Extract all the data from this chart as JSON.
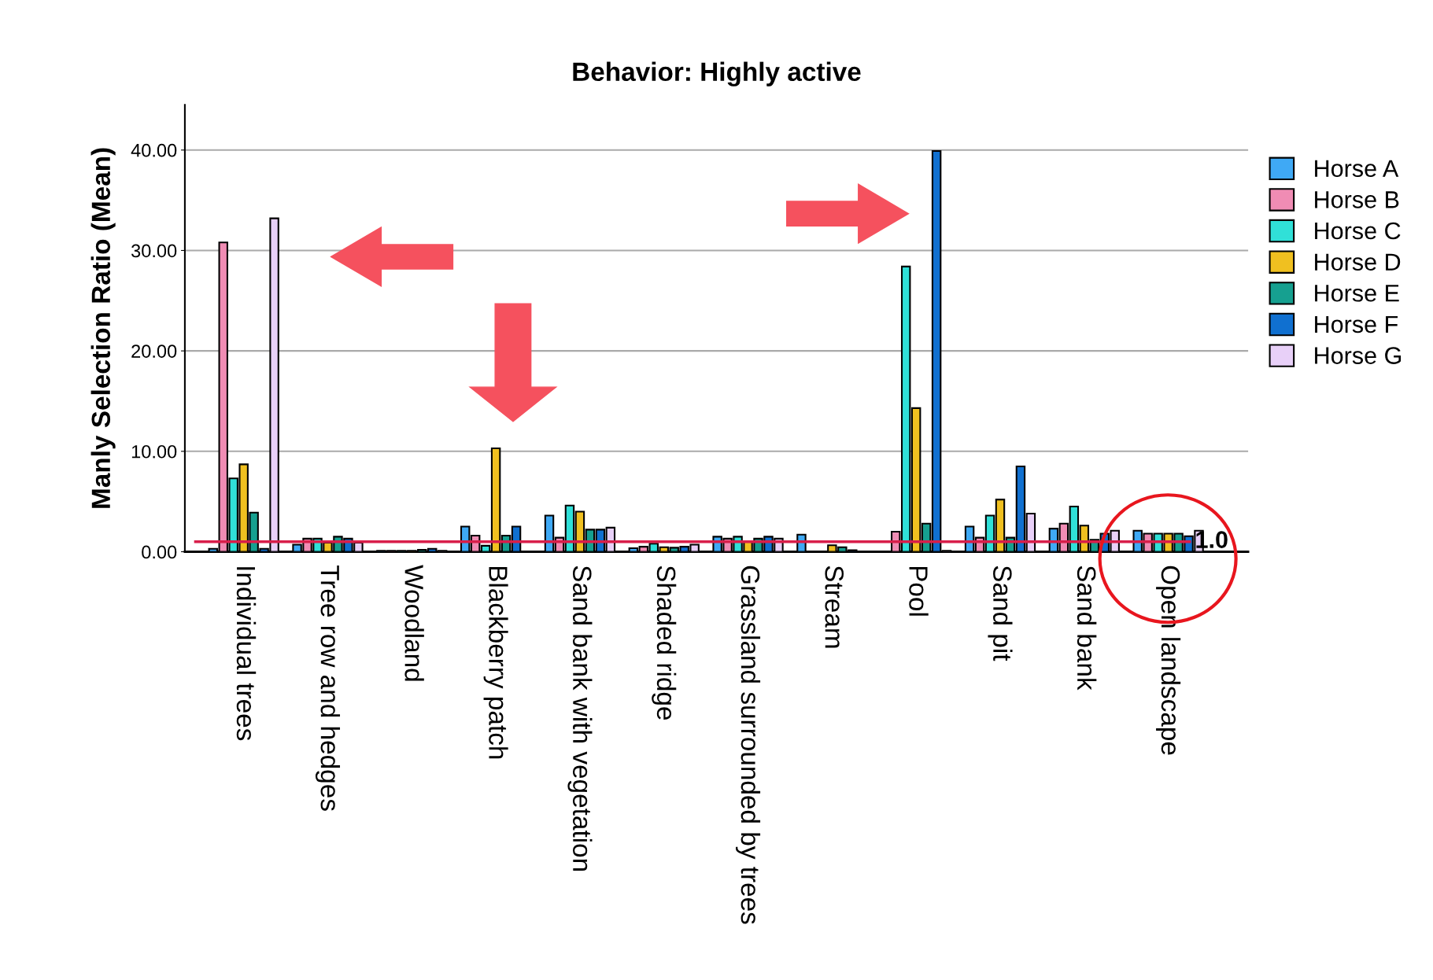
{
  "chart_data": {
    "type": "bar",
    "title": "Behavior: Highly active",
    "ylabel": "Manly Selection Ratio (Mean)",
    "categories": [
      "Individual trees",
      "Tree row and hedges",
      "Woodland",
      "Blackberry patch",
      "Sand bank with vegetation",
      "Shaded ridge",
      "Grassland surrounded by trees",
      "Stream",
      "Pool",
      "Sand pit",
      "Sand bank",
      "Open landscape"
    ],
    "series": [
      {
        "name": "Horse A",
        "color": "#3fa9f5",
        "values": [
          0.3,
          0.7,
          0.1,
          2.5,
          3.6,
          0.35,
          1.5,
          1.7,
          null,
          2.5,
          2.3,
          2.1
        ]
      },
      {
        "name": "Horse B",
        "color": "#f08cb4",
        "values": [
          30.8,
          1.3,
          0.1,
          1.6,
          1.4,
          0.5,
          1.3,
          null,
          2.0,
          1.4,
          2.8,
          1.8
        ]
      },
      {
        "name": "Horse C",
        "color": "#30e0d8",
        "values": [
          7.3,
          1.3,
          0.1,
          0.6,
          4.6,
          0.8,
          1.5,
          null,
          28.4,
          3.6,
          4.5,
          1.8
        ]
      },
      {
        "name": "Horse D",
        "color": "#f0c020",
        "values": [
          8.7,
          0.9,
          0.1,
          10.3,
          4.0,
          0.45,
          1.0,
          0.65,
          14.3,
          5.2,
          2.6,
          1.8
        ]
      },
      {
        "name": "Horse E",
        "color": "#16a090",
        "values": [
          3.9,
          1.5,
          0.2,
          1.6,
          2.2,
          0.4,
          1.3,
          0.45,
          2.8,
          1.4,
          1.2,
          1.8
        ]
      },
      {
        "name": "Horse F",
        "color": "#1070d0",
        "values": [
          0.3,
          1.3,
          0.3,
          2.5,
          2.2,
          0.5,
          1.5,
          0.15,
          39.9,
          8.5,
          1.8,
          1.55
        ]
      },
      {
        "name": "Horse G",
        "color": "#e8d0f8",
        "values": [
          33.2,
          0.9,
          0.1,
          null,
          2.4,
          0.7,
          1.3,
          null,
          0.1,
          3.8,
          2.1,
          2.1
        ]
      }
    ],
    "ylim": [
      0,
      44.5
    ],
    "yticks": [
      {
        "value": 0,
        "label": "0.00"
      },
      {
        "value": 10,
        "label": "10.00"
      },
      {
        "value": 20,
        "label": "20.00"
      },
      {
        "value": 30,
        "label": "30.00"
      },
      {
        "value": 40,
        "label": "40.00"
      }
    ],
    "ref_lines": [
      {
        "axis": "y",
        "value": 1.0,
        "label": "1.0",
        "color": "#d81e4a"
      }
    ],
    "grid": "y",
    "legend": "top right"
  }
}
